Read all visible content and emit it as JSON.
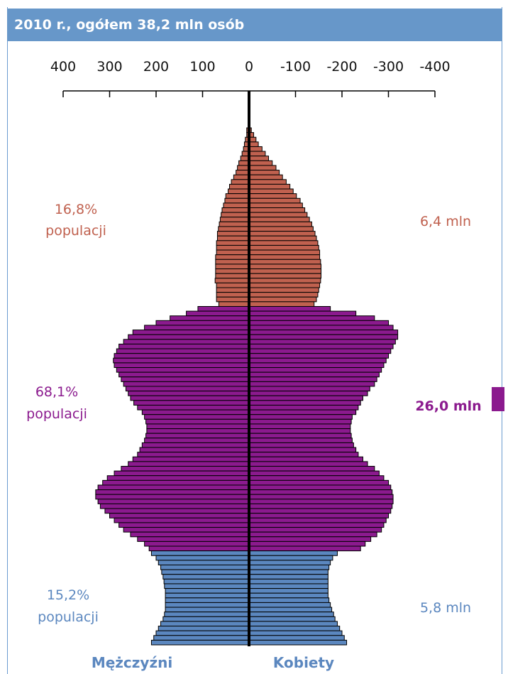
{
  "title": "2010 r., ogółem 38,2 mln osób",
  "chart_data": {
    "type": "bar",
    "orientation": "horizontal",
    "layout": "population-pyramid",
    "x_ticks": [
      "400",
      "300",
      "200",
      "100",
      "0",
      "-100",
      "-200",
      "-300",
      "-400"
    ],
    "xlim": [
      400,
      -400
    ],
    "age_groups": [
      {
        "name": "post-working",
        "color": "#c0614f",
        "men": [
          5,
          5,
          8,
          10,
          12,
          15,
          18,
          22,
          25,
          28,
          33,
          38,
          42,
          45,
          50,
          52,
          55,
          58,
          60,
          62,
          64,
          66,
          68,
          68,
          70,
          70,
          70,
          72,
          72,
          72,
          72,
          72,
          73,
          70,
          70,
          70,
          70,
          65
        ],
        "women": [
          5,
          10,
          15,
          20,
          28,
          35,
          42,
          50,
          58,
          65,
          72,
          80,
          88,
          95,
          102,
          110,
          115,
          120,
          125,
          130,
          135,
          138,
          142,
          145,
          148,
          150,
          152,
          152,
          154,
          155,
          155,
          155,
          154,
          152,
          150,
          148,
          145,
          140
        ]
      },
      {
        "name": "working",
        "color": "#8b1a8e",
        "men": [
          110,
          135,
          170,
          200,
          225,
          250,
          260,
          270,
          280,
          285,
          290,
          292,
          290,
          285,
          280,
          275,
          270,
          265,
          260,
          255,
          248,
          240,
          230,
          225,
          222,
          220,
          220,
          222,
          225,
          230,
          235,
          240,
          250,
          260,
          275,
          290,
          305,
          315,
          325,
          330,
          330,
          325,
          320,
          310,
          300,
          290,
          280,
          270,
          255,
          240,
          225,
          215
        ],
        "women": [
          175,
          230,
          270,
          300,
          310,
          320,
          320,
          315,
          310,
          305,
          300,
          295,
          290,
          285,
          280,
          275,
          270,
          260,
          255,
          245,
          240,
          235,
          230,
          222,
          220,
          218,
          218,
          220,
          222,
          225,
          230,
          235,
          245,
          255,
          270,
          280,
          290,
          300,
          305,
          308,
          310,
          310,
          308,
          305,
          300,
          295,
          290,
          285,
          275,
          262,
          250,
          240
        ]
      },
      {
        "name": "pre-working",
        "color": "#5b87bf",
        "men": [
          210,
          200,
          195,
          190,
          188,
          185,
          183,
          182,
          180,
          180,
          180,
          180,
          180,
          182,
          185,
          190,
          195,
          200,
          205,
          210
        ],
        "women": [
          190,
          180,
          175,
          172,
          170,
          170,
          170,
          170,
          170,
          170,
          172,
          175,
          178,
          182,
          185,
          190,
          195,
          200,
          205,
          210
        ]
      }
    ],
    "annotations": {
      "post_working": {
        "share": "16,8%",
        "share_label": "populacji",
        "total": "6,4 mln",
        "color": "#c0614f"
      },
      "working": {
        "share": "68,1%",
        "share_label": "populacji",
        "total": "26,0 mln",
        "color": "#8b1a8e"
      },
      "pre_working": {
        "share": "15,2%",
        "share_label": "populacji",
        "total": "5,8 mln",
        "color": "#5b87bf"
      }
    },
    "xlabel_left": "Mężczyźni",
    "xlabel_right": "Kobiety"
  }
}
